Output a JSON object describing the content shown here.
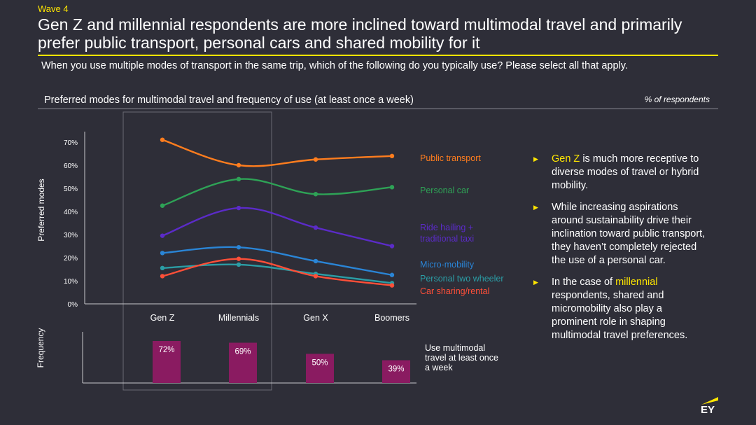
{
  "header": {
    "wave_label": "Wave 4",
    "title": "Gen Z and millennial respondents are more inclined toward multimodal travel and primarily prefer public transport, personal cars and shared mobility for it",
    "question": "When you use multiple modes of transport in the same trip, which of the following do you typically use? Please select all that apply."
  },
  "chart_header": {
    "title": "Preferred modes for multimodal travel and frequency of use (at least once a week)",
    "unit_note": "% of respondents"
  },
  "chart_data": [
    {
      "type": "line",
      "ylabel": "Preferred modes",
      "categories": [
        "Gen Z",
        "Millennials",
        "Gen X",
        "Boomers"
      ],
      "ylim": [
        0,
        70
      ],
      "yticks": [
        "0%",
        "10%",
        "20%",
        "30%",
        "40%",
        "50%",
        "60%",
        "70%"
      ],
      "grid": false,
      "legend_placement": "right",
      "series": [
        {
          "name": "Public transport",
          "color": "#ff7d1e",
          "values": [
            71,
            60,
            62.5,
            64
          ]
        },
        {
          "name": "Personal car",
          "color": "#2ea256",
          "values": [
            42.5,
            54,
            47.5,
            50.5
          ]
        },
        {
          "name": "Ride hailing + traditional taxi",
          "color": "#5b2bc8",
          "values": [
            29.5,
            41.5,
            33,
            25
          ]
        },
        {
          "name": "Micro-mobility",
          "color": "#2a85d6",
          "values": [
            22,
            24.5,
            18.5,
            12.5
          ]
        },
        {
          "name": "Personal two wheeler",
          "color": "#2b9da5",
          "values": [
            15.5,
            17,
            13,
            9
          ]
        },
        {
          "name": "Car sharing/rental",
          "color": "#ff4f38",
          "values": [
            12,
            19.5,
            12,
            8
          ]
        }
      ]
    },
    {
      "type": "bar",
      "ylabel": "Frequency",
      "categories": [
        "Gen Z",
        "Millennials",
        "Gen X",
        "Boomers"
      ],
      "values": [
        72,
        69,
        50,
        39
      ],
      "value_labels": [
        "72%",
        "69%",
        "50%",
        "39%"
      ],
      "color": "#8a1b61",
      "legend": "Use multimodal travel at least once a week"
    }
  ],
  "bullets": [
    {
      "highlight": "Gen Z",
      "text": " is much more receptive to diverse modes of travel or hybrid mobility."
    },
    {
      "highlight": "",
      "text": "While increasing aspirations around sustainability drive their inclination toward public transport, they haven’t completely rejected the use of a personal car."
    },
    {
      "prefix": "In the case of ",
      "highlight": "millennial",
      "text": " respondents, shared and micromobility also play a prominent role in shaping multimodal travel preferences."
    }
  ],
  "colors": {
    "background": "#2e2e38",
    "accent": "#ffe600"
  },
  "logo": {
    "text": "EY",
    "icon": "ey-logo-icon"
  }
}
